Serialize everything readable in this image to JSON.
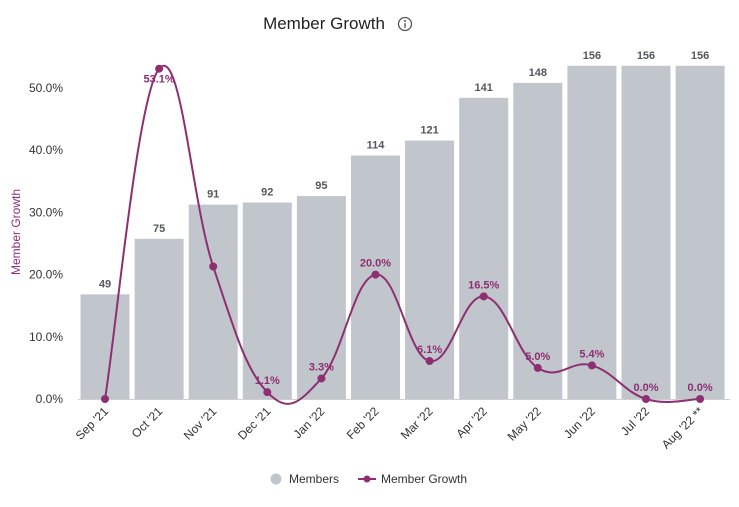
{
  "colors": {
    "bar": "#c1c5cc",
    "line": "#8e2f72",
    "axis": "#cfcfcf",
    "text": "#333333"
  },
  "chart_data": {
    "type": "bar",
    "title": "Member Growth",
    "info_icon": "info-circle-icon",
    "ylabel": "Member Growth",
    "xlabel": "",
    "categories": [
      "Sep '21",
      "Oct '21",
      "Nov '21",
      "Dec '21",
      "Jan '22",
      "Feb '22",
      "Mar '22",
      "Apr '22",
      "May '22",
      "Jun '22",
      "Jul '22",
      "Aug '22 **"
    ],
    "y_ticks": [
      "0.0%",
      "10.0%",
      "20.0%",
      "30.0%",
      "40.0%",
      "50.0%"
    ],
    "ylim": [
      0,
      50
    ],
    "series": [
      {
        "name": "Members",
        "type": "bar",
        "axis": "secondary",
        "values": [
          49,
          75,
          91,
          92,
          95,
          114,
          121,
          141,
          148,
          156,
          156,
          156
        ],
        "labels": [
          "49",
          "75",
          "91",
          "92",
          "95",
          "114",
          "121",
          "141",
          "148",
          "156",
          "156",
          "156"
        ]
      },
      {
        "name": "Member Growth",
        "type": "line",
        "axis": "primary",
        "values": [
          0.0,
          53.1,
          21.3,
          1.1,
          3.3,
          20.0,
          6.1,
          16.5,
          5.0,
          5.4,
          0.0,
          0.0
        ],
        "labels": [
          "",
          "53.1%",
          "",
          "1.1%",
          "3.3%",
          "20.0%",
          "6.1%",
          "16.5%",
          "5.0%",
          "5.4%",
          "0.0%",
          "0.0%"
        ]
      }
    ],
    "legend": [
      "Members",
      "Member Growth"
    ],
    "legend_position": "bottom"
  }
}
